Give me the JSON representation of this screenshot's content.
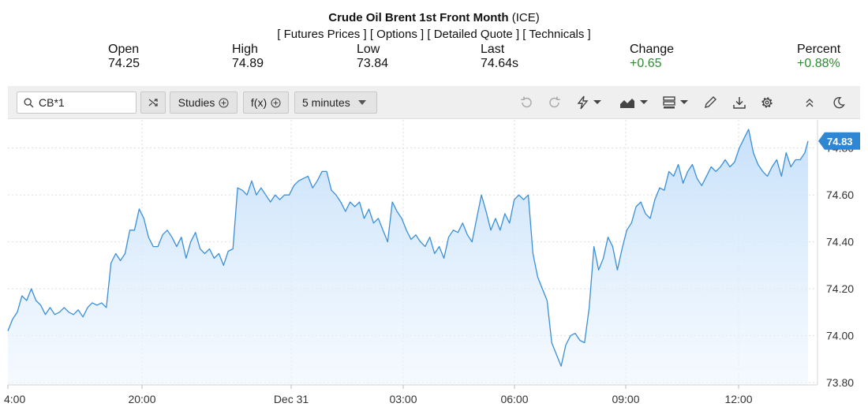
{
  "header": {
    "title_bold": "Crude Oil Brent 1st Front Month",
    "title_suffix": "(ICE)",
    "links": [
      "[ Futures Prices ]",
      "[ Options ]",
      "[ Detailed Quote ]",
      "[ Technicals ]"
    ]
  },
  "stats": [
    {
      "label": "Open",
      "value": "74.25"
    },
    {
      "label": "High",
      "value": "74.89"
    },
    {
      "label": "Low",
      "value": "73.84"
    },
    {
      "label": "Last",
      "value": "74.64s"
    },
    {
      "label": "Change",
      "value": "+0.65"
    },
    {
      "label": "Percent",
      "value": "+0.88%"
    }
  ],
  "colors": {
    "positive": "#2e8b2e",
    "line": "#3a8fd8",
    "price_tag": "#2f86d3"
  },
  "toolbar": {
    "symbol_value": "CB*1",
    "studies_label": "Studies",
    "fx_label": "f(x)",
    "interval_label": "5 minutes",
    "icons": [
      "undo-icon",
      "redo-icon",
      "flash-icon",
      "area-chart-icon",
      "layout-icon",
      "pencil-icon",
      "download-icon",
      "gear-icon",
      "collapse-icon",
      "moon-icon"
    ]
  },
  "chart_data": {
    "type": "area",
    "x_ticks": [
      "4:00",
      "20:00",
      "Dec 31",
      "03:00",
      "06:00",
      "09:00",
      "12:00"
    ],
    "y_ticks": [
      "74.80",
      "74.60",
      "74.40",
      "74.20",
      "74.00",
      "73.80"
    ],
    "ylim": [
      73.79,
      74.92
    ],
    "xlim": [
      0,
      1024
    ],
    "last_price_label": "74.83",
    "grid": true,
    "values": [
      [
        0,
        74.02
      ],
      [
        6,
        74.07
      ],
      [
        12,
        74.1
      ],
      [
        18,
        74.17
      ],
      [
        24,
        74.15
      ],
      [
        30,
        74.2
      ],
      [
        36,
        74.15
      ],
      [
        42,
        74.13
      ],
      [
        48,
        74.09
      ],
      [
        54,
        74.12
      ],
      [
        60,
        74.09
      ],
      [
        66,
        74.1
      ],
      [
        72,
        74.12
      ],
      [
        78,
        74.1
      ],
      [
        84,
        74.09
      ],
      [
        90,
        74.11
      ],
      [
        96,
        74.08
      ],
      [
        102,
        74.12
      ],
      [
        108,
        74.14
      ],
      [
        114,
        74.13
      ],
      [
        120,
        74.14
      ],
      [
        126,
        74.12
      ],
      [
        132,
        74.31
      ],
      [
        138,
        74.35
      ],
      [
        144,
        74.32
      ],
      [
        150,
        74.35
      ],
      [
        156,
        74.45
      ],
      [
        162,
        74.45
      ],
      [
        168,
        74.54
      ],
      [
        174,
        74.5
      ],
      [
        180,
        74.42
      ],
      [
        186,
        74.38
      ],
      [
        192,
        74.38
      ],
      [
        198,
        74.43
      ],
      [
        204,
        74.45
      ],
      [
        210,
        74.42
      ],
      [
        216,
        74.38
      ],
      [
        222,
        74.42
      ],
      [
        228,
        74.33
      ],
      [
        234,
        74.4
      ],
      [
        240,
        74.44
      ],
      [
        246,
        74.37
      ],
      [
        252,
        74.35
      ],
      [
        258,
        74.37
      ],
      [
        264,
        74.33
      ],
      [
        270,
        74.35
      ],
      [
        276,
        74.3
      ],
      [
        282,
        74.36
      ],
      [
        288,
        74.37
      ],
      [
        294,
        74.63
      ],
      [
        300,
        74.62
      ],
      [
        306,
        74.6
      ],
      [
        312,
        74.66
      ],
      [
        318,
        74.6
      ],
      [
        324,
        74.63
      ],
      [
        330,
        74.6
      ],
      [
        336,
        74.57
      ],
      [
        342,
        74.6
      ],
      [
        348,
        74.58
      ],
      [
        354,
        74.6
      ],
      [
        360,
        74.6
      ],
      [
        366,
        74.64
      ],
      [
        372,
        74.66
      ],
      [
        378,
        74.67
      ],
      [
        384,
        74.68
      ],
      [
        390,
        74.63
      ],
      [
        396,
        74.66
      ],
      [
        402,
        74.7
      ],
      [
        408,
        74.7
      ],
      [
        414,
        74.62
      ],
      [
        420,
        74.6
      ],
      [
        426,
        74.57
      ],
      [
        432,
        74.53
      ],
      [
        438,
        74.57
      ],
      [
        444,
        74.55
      ],
      [
        450,
        74.57
      ],
      [
        456,
        74.5
      ],
      [
        462,
        74.54
      ],
      [
        468,
        74.48
      ],
      [
        474,
        74.5
      ],
      [
        480,
        74.45
      ],
      [
        486,
        74.4
      ],
      [
        492,
        74.57
      ],
      [
        498,
        74.53
      ],
      [
        504,
        74.5
      ],
      [
        510,
        74.45
      ],
      [
        516,
        74.41
      ],
      [
        522,
        74.43
      ],
      [
        528,
        74.4
      ],
      [
        534,
        74.38
      ],
      [
        540,
        74.42
      ],
      [
        546,
        74.35
      ],
      [
        552,
        74.38
      ],
      [
        558,
        74.33
      ],
      [
        564,
        74.42
      ],
      [
        570,
        74.45
      ],
      [
        576,
        74.44
      ],
      [
        582,
        74.48
      ],
      [
        588,
        74.43
      ],
      [
        594,
        74.4
      ],
      [
        600,
        74.5
      ],
      [
        606,
        74.6
      ],
      [
        612,
        74.53
      ],
      [
        618,
        74.45
      ],
      [
        624,
        74.5
      ],
      [
        630,
        74.45
      ],
      [
        636,
        74.52
      ],
      [
        642,
        74.48
      ],
      [
        648,
        74.58
      ],
      [
        654,
        74.6
      ],
      [
        660,
        74.58
      ],
      [
        666,
        74.6
      ],
      [
        672,
        74.35
      ],
      [
        678,
        74.25
      ],
      [
        684,
        74.2
      ],
      [
        690,
        74.15
      ],
      [
        696,
        73.97
      ],
      [
        702,
        73.92
      ],
      [
        708,
        73.87
      ],
      [
        714,
        73.96
      ],
      [
        720,
        74.0
      ],
      [
        726,
        74.01
      ],
      [
        732,
        73.98
      ],
      [
        738,
        73.97
      ],
      [
        744,
        74.12
      ],
      [
        750,
        74.38
      ],
      [
        756,
        74.28
      ],
      [
        762,
        74.33
      ],
      [
        768,
        74.42
      ],
      [
        774,
        74.38
      ],
      [
        780,
        74.28
      ],
      [
        786,
        74.37
      ],
      [
        792,
        74.45
      ],
      [
        798,
        74.48
      ],
      [
        804,
        74.55
      ],
      [
        810,
        74.57
      ],
      [
        816,
        74.52
      ],
      [
        822,
        74.5
      ],
      [
        828,
        74.58
      ],
      [
        834,
        74.63
      ],
      [
        840,
        74.62
      ],
      [
        846,
        74.7
      ],
      [
        852,
        74.68
      ],
      [
        858,
        74.73
      ],
      [
        864,
        74.65
      ],
      [
        870,
        74.7
      ],
      [
        876,
        74.73
      ],
      [
        882,
        74.67
      ],
      [
        888,
        74.64
      ],
      [
        894,
        74.68
      ],
      [
        900,
        74.72
      ],
      [
        906,
        74.7
      ],
      [
        912,
        74.72
      ],
      [
        918,
        74.75
      ],
      [
        924,
        74.72
      ],
      [
        930,
        74.74
      ],
      [
        936,
        74.8
      ],
      [
        942,
        74.84
      ],
      [
        948,
        74.88
      ],
      [
        954,
        74.78
      ],
      [
        960,
        74.73
      ],
      [
        966,
        74.7
      ],
      [
        972,
        74.68
      ],
      [
        978,
        74.72
      ],
      [
        984,
        74.75
      ],
      [
        990,
        74.68
      ],
      [
        996,
        74.78
      ],
      [
        1002,
        74.72
      ],
      [
        1008,
        74.75
      ],
      [
        1014,
        74.75
      ],
      [
        1020,
        74.78
      ],
      [
        1024,
        74.83
      ]
    ]
  }
}
